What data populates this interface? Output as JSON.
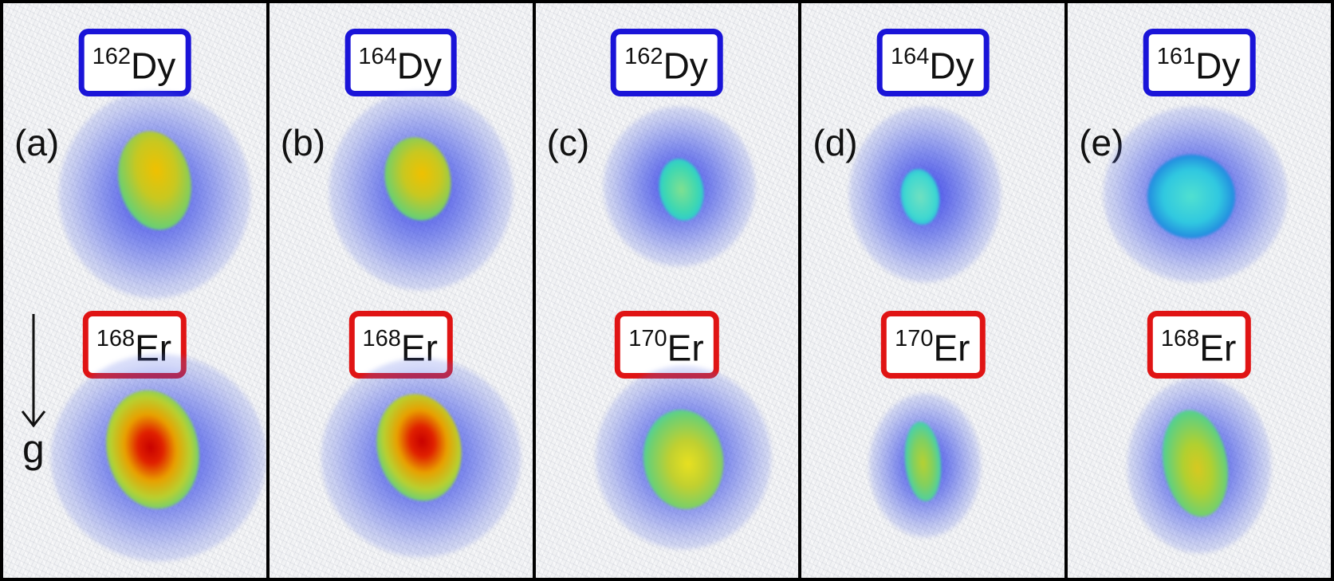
{
  "panels": [
    {
      "letter": "(a)",
      "top": {
        "mass": "162",
        "element": "Dy"
      },
      "bottom": {
        "mass": "168",
        "element": "Er"
      }
    },
    {
      "letter": "(b)",
      "top": {
        "mass": "164",
        "element": "Dy"
      },
      "bottom": {
        "mass": "168",
        "element": "Er"
      }
    },
    {
      "letter": "(c)",
      "top": {
        "mass": "162",
        "element": "Dy"
      },
      "bottom": {
        "mass": "170",
        "element": "Er"
      }
    },
    {
      "letter": "(d)",
      "top": {
        "mass": "164",
        "element": "Dy"
      },
      "bottom": {
        "mass": "170",
        "element": "Er"
      }
    },
    {
      "letter": "(e)",
      "top": {
        "mass": "161",
        "element": "Dy"
      },
      "bottom": {
        "mass": "168",
        "element": "Er"
      }
    }
  ],
  "gravity_label": "g",
  "colors": {
    "dy_frame": "#1a14d8",
    "er_frame": "#e01414",
    "halo_blue": "#1e28e6",
    "peak_red": "#d40000",
    "mid_yellow": "#d8d820",
    "low_cyan": "#30d0d0",
    "background": "#f1f2f4"
  }
}
